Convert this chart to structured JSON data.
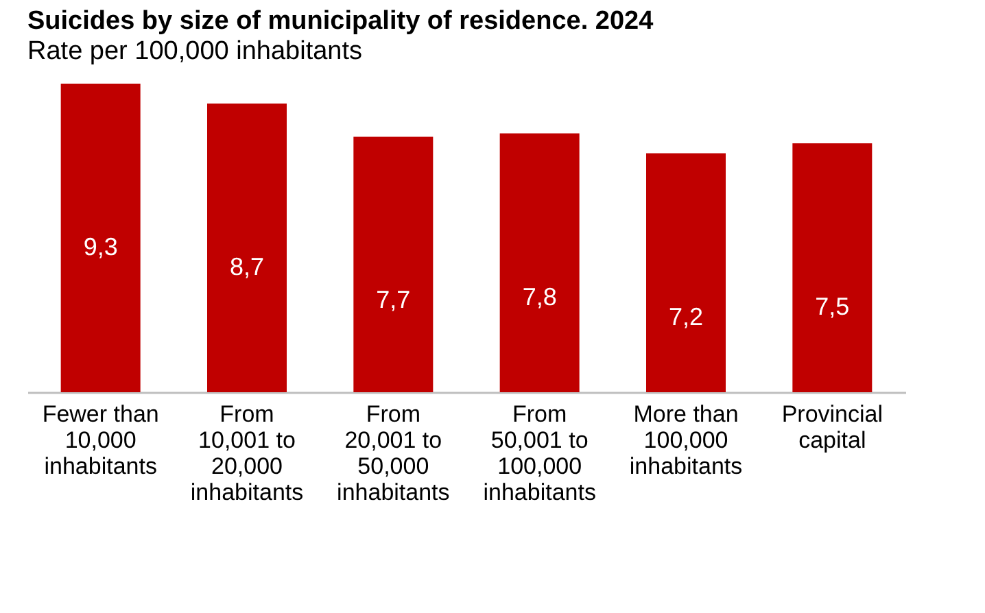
{
  "chart_data": {
    "type": "bar",
    "title": "Suicides by size of municipality of residence. 2024",
    "subtitle": "Rate per 100,000 inhabitants",
    "categories": [
      "Fewer than 10,000 inhabitants",
      "From 10,001 to 20,000 inhabitants",
      "From 20,001 to 50,000 inhabitants",
      "From 50,001 to 100,000 inhabitants",
      "More than 100,000 inhabitants",
      "Provincial capital"
    ],
    "values": [
      9.3,
      8.7,
      7.7,
      7.8,
      7.2,
      7.5
    ],
    "value_labels": [
      "9,3",
      "8,7",
      "7,7",
      "7,8",
      "7,2",
      "7,5"
    ],
    "color": "#c00000",
    "grid": false,
    "tick_labels": "x"
  }
}
